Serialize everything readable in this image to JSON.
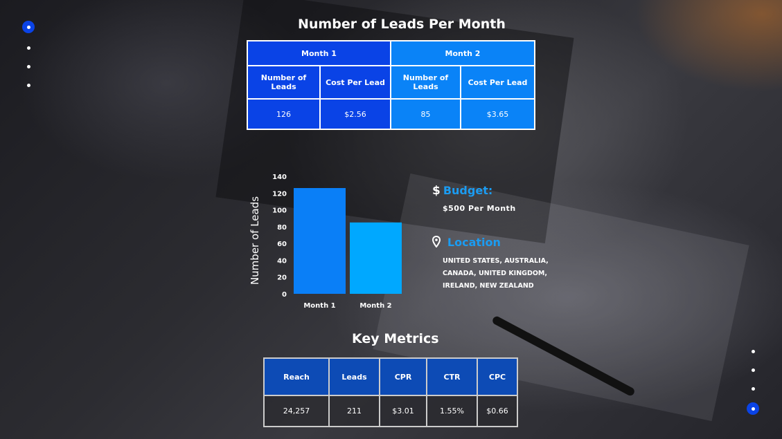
{
  "leads_table": {
    "title": "Number of Leads Per Month",
    "months": [
      {
        "label": "Month 1",
        "leads_header": "Number of Leads",
        "cpl_header": "Cost Per Lead",
        "leads": "126",
        "cpl": "$2.56"
      },
      {
        "label": "Month 2",
        "leads_header": "Number of Leads",
        "cpl_header": "Cost Per Lead",
        "leads": "85",
        "cpl": "$3.65"
      }
    ]
  },
  "chart_data": {
    "type": "bar",
    "categories": [
      "Month 1",
      "Month 2"
    ],
    "values": [
      126,
      85
    ],
    "ylabel": "Number of Leads",
    "ylim": [
      0,
      140
    ],
    "yticks": [
      0,
      20,
      40,
      60,
      80,
      100,
      120,
      140
    ],
    "colors": [
      "#0a7ff7",
      "#00a8ff"
    ],
    "grid": false
  },
  "budget": {
    "icon": "dollar-icon",
    "label": "Budget:",
    "value": "$500 Per Month"
  },
  "location": {
    "icon": "location-pin-icon",
    "label": "Location",
    "lines": [
      "UNITED STATES,  AUSTRALIA,",
      "CANADA, UNITED KINGDOM,",
      "IRELAND,  NEW ZEALAND"
    ]
  },
  "metrics": {
    "title": "Key Metrics",
    "headers": [
      "Reach",
      "Leads",
      "CPR",
      "CTR",
      "CPC"
    ],
    "values": [
      "24,257",
      "211",
      "$3.01",
      "1.55%",
      "$0.66"
    ]
  },
  "colors": {
    "accent": "#0a43e6",
    "accent_light": "#0a83f7",
    "info_blue": "#1b9cf2",
    "metrics_header": "#0d4bb5"
  }
}
